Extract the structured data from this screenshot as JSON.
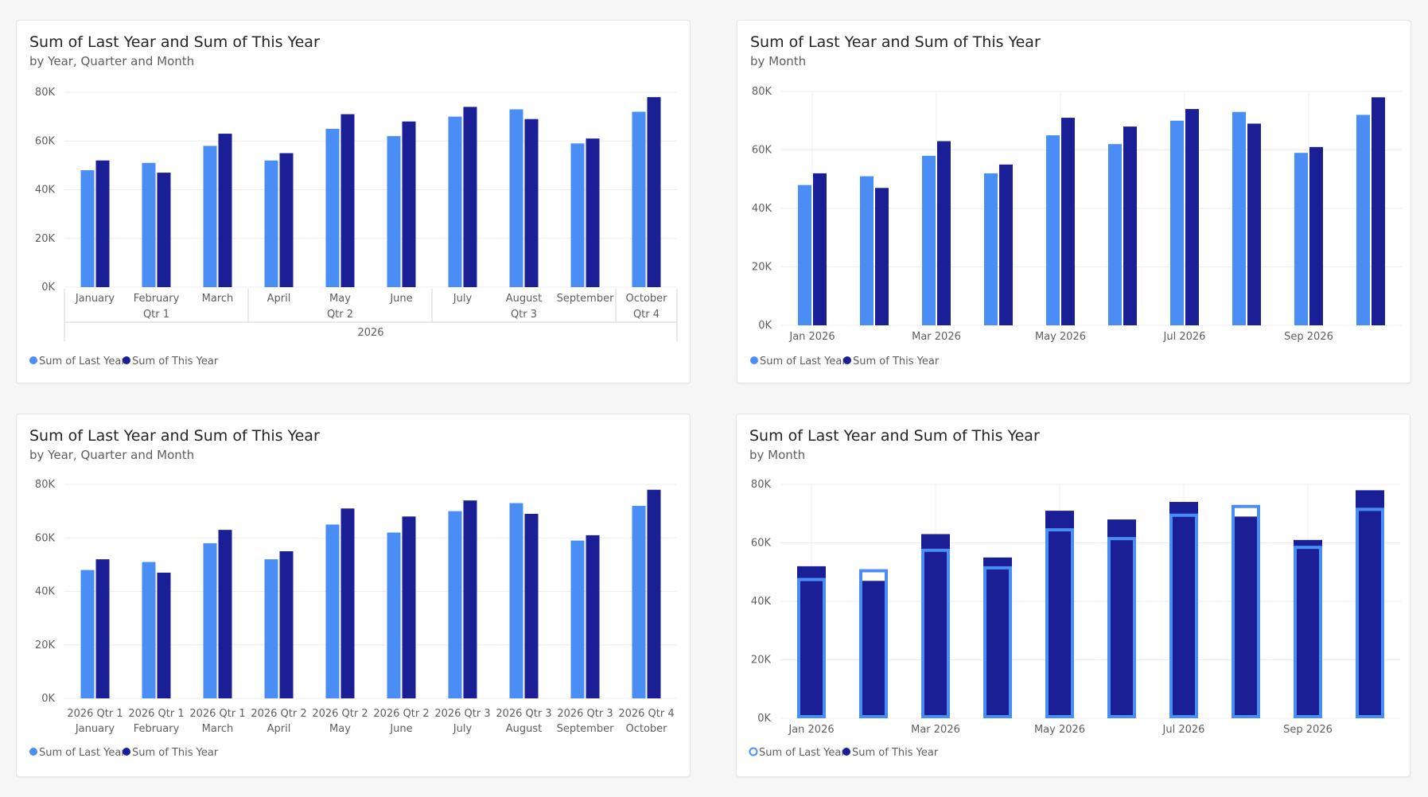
{
  "colors": {
    "last_year": "#4a8ef5",
    "this_year": "#1a1f96",
    "grid": "#eeeeee",
    "axis_line": "#d6d6d6"
  },
  "legend": {
    "last_year": "Sum of Last Year",
    "this_year": "Sum of This Year"
  },
  "chart_data": [
    {
      "type": "bar",
      "title": "Sum of Last Year and Sum of This Year",
      "subtitle": "by Year, Quarter and Month",
      "categories": [
        "January",
        "February",
        "March",
        "April",
        "May",
        "June",
        "July",
        "August",
        "September",
        "October"
      ],
      "quarter_groups": [
        {
          "label": "Qtr 1",
          "months": 3
        },
        {
          "label": "Qtr 2",
          "months": 3
        },
        {
          "label": "Qtr 3",
          "months": 3
        },
        {
          "label": "Qtr 4",
          "months": 1
        }
      ],
      "year_label": "2026",
      "y_ticks": [
        "0K",
        "20K",
        "40K",
        "60K",
        "80K"
      ],
      "ylim": [
        0,
        80000
      ],
      "series": [
        {
          "name": "Sum of Last Year",
          "values": [
            48000,
            51000,
            58000,
            52000,
            65000,
            62000,
            70000,
            73000,
            59000,
            72000
          ]
        },
        {
          "name": "Sum of This Year",
          "values": [
            52000,
            47000,
            63000,
            55000,
            71000,
            68000,
            74000,
            69000,
            61000,
            78000
          ]
        }
      ],
      "legend_position": "bottom-left"
    },
    {
      "type": "bar",
      "title": "Sum of Last Year and Sum of This Year",
      "subtitle": "by Month",
      "x_tick_labels": [
        "Jan 2026",
        "Mar 2026",
        "May 2026",
        "Jul 2026",
        "Sep 2026"
      ],
      "y_ticks": [
        "0K",
        "20K",
        "40K",
        "60K",
        "80K"
      ],
      "ylim": [
        0,
        80000
      ],
      "series": [
        {
          "name": "Sum of Last Year",
          "values": [
            48000,
            51000,
            58000,
            52000,
            65000,
            62000,
            70000,
            73000,
            59000,
            72000
          ]
        },
        {
          "name": "Sum of This Year",
          "values": [
            52000,
            47000,
            63000,
            55000,
            71000,
            68000,
            74000,
            69000,
            61000,
            78000
          ]
        }
      ],
      "legend_position": "bottom-left"
    },
    {
      "type": "bar",
      "title": "Sum of Last Year and Sum of This Year",
      "subtitle": "by Year, Quarter and Month",
      "categories": [
        "January",
        "February",
        "March",
        "April",
        "May",
        "June",
        "July",
        "August",
        "September",
        "October"
      ],
      "category_prefixes": [
        "2026 Qtr 1",
        "2026 Qtr 1",
        "2026 Qtr 1",
        "2026 Qtr 2",
        "2026 Qtr 2",
        "2026 Qtr 2",
        "2026 Qtr 3",
        "2026 Qtr 3",
        "2026 Qtr 3",
        "2026 Qtr 4"
      ],
      "y_ticks": [
        "0K",
        "20K",
        "40K",
        "60K",
        "80K"
      ],
      "ylim": [
        0,
        80000
      ],
      "series": [
        {
          "name": "Sum of Last Year",
          "values": [
            48000,
            51000,
            58000,
            52000,
            65000,
            62000,
            70000,
            73000,
            59000,
            72000
          ]
        },
        {
          "name": "Sum of This Year",
          "values": [
            52000,
            47000,
            63000,
            55000,
            71000,
            68000,
            74000,
            69000,
            61000,
            78000
          ]
        }
      ],
      "legend_position": "bottom-left"
    },
    {
      "type": "bar",
      "title": "Sum of Last Year and Sum of This Year",
      "subtitle": "by Month",
      "overlapped": true,
      "x_tick_labels": [
        "Jan 2026",
        "Mar 2026",
        "May 2026",
        "Jul 2026",
        "Sep 2026"
      ],
      "y_ticks": [
        "0K",
        "20K",
        "40K",
        "60K",
        "80K"
      ],
      "ylim": [
        0,
        80000
      ],
      "series": [
        {
          "name": "Sum of Last Year",
          "values": [
            48000,
            51000,
            58000,
            52000,
            65000,
            62000,
            70000,
            73000,
            59000,
            72000
          ]
        },
        {
          "name": "Sum of This Year",
          "values": [
            52000,
            47000,
            63000,
            55000,
            71000,
            68000,
            74000,
            69000,
            61000,
            78000
          ]
        }
      ],
      "legend_position": "bottom-left"
    }
  ]
}
